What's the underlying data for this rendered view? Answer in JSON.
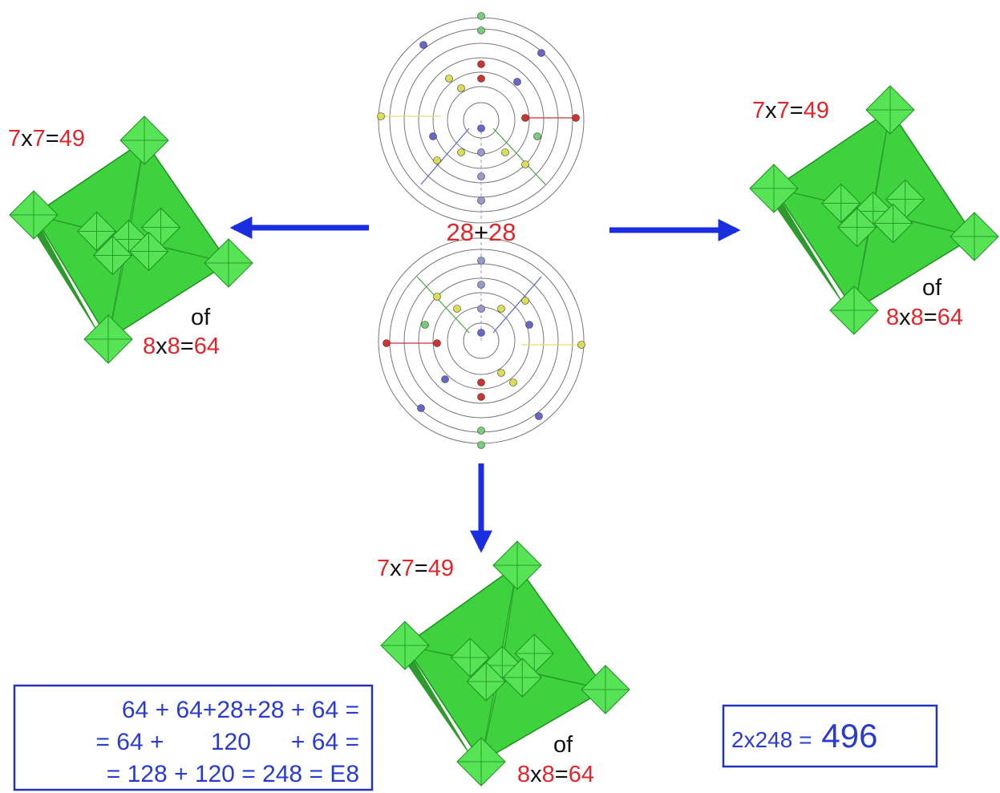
{
  "diagram": {
    "octahedra": [
      {
        "product": {
          "parts": [
            "7",
            "x",
            "7",
            "=",
            "49"
          ]
        },
        "of": "of",
        "total": {
          "parts": [
            "8",
            "x",
            "8",
            "=",
            "64"
          ]
        }
      },
      {
        "product": {
          "parts": [
            "7",
            "x",
            "7",
            "=",
            "49"
          ]
        },
        "of": "of",
        "total": {
          "parts": [
            "8",
            "x",
            "8",
            "=",
            "64"
          ]
        }
      },
      {
        "product": {
          "parts": [
            "7",
            "x",
            "7",
            "=",
            "49"
          ]
        },
        "of": "of",
        "total": {
          "parts": [
            "8",
            "x",
            "8",
            "=",
            "64"
          ]
        }
      }
    ],
    "center_sum": {
      "parts": [
        "28",
        "+",
        "28"
      ]
    },
    "equation_box": {
      "lines": [
        "64 + 64+28+28 + 64 =",
        "= 64 +       120      + 64 =",
        "= 128 + 120 = 248 = E8"
      ]
    },
    "result_box": {
      "expression": "2x248 =",
      "result": "496"
    }
  }
}
